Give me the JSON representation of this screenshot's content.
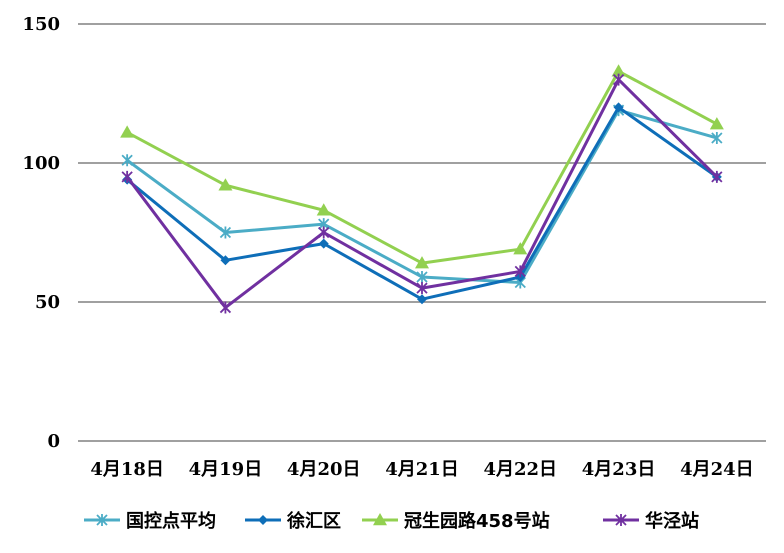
{
  "chart_data": {
    "type": "line",
    "categories": [
      "4月18日",
      "4月19日",
      "4月20日",
      "4月21日",
      "4月22日",
      "4月23日",
      "4月24日"
    ],
    "ylim": [
      0,
      150
    ],
    "yticks": [
      0,
      50,
      100,
      150
    ],
    "grid": true,
    "legend_position": "bottom",
    "series": [
      {
        "name": "国控点平均",
        "color": "#4bacc6",
        "marker": "star",
        "values": [
          101,
          75,
          78,
          59,
          57,
          119,
          109
        ]
      },
      {
        "name": "徐汇区",
        "color": "#0e6eb8",
        "marker": "diamond",
        "values": [
          94,
          65,
          71,
          51,
          59,
          120,
          95
        ]
      },
      {
        "name": "冠生园路458号站",
        "color": "#92d050",
        "marker": "triangle",
        "values": [
          111,
          92,
          83,
          64,
          69,
          133,
          114
        ]
      },
      {
        "name": "华泾站",
        "color": "#7030a0",
        "marker": "star",
        "values": [
          95,
          48,
          75,
          55,
          61,
          130,
          95
        ]
      }
    ]
  }
}
